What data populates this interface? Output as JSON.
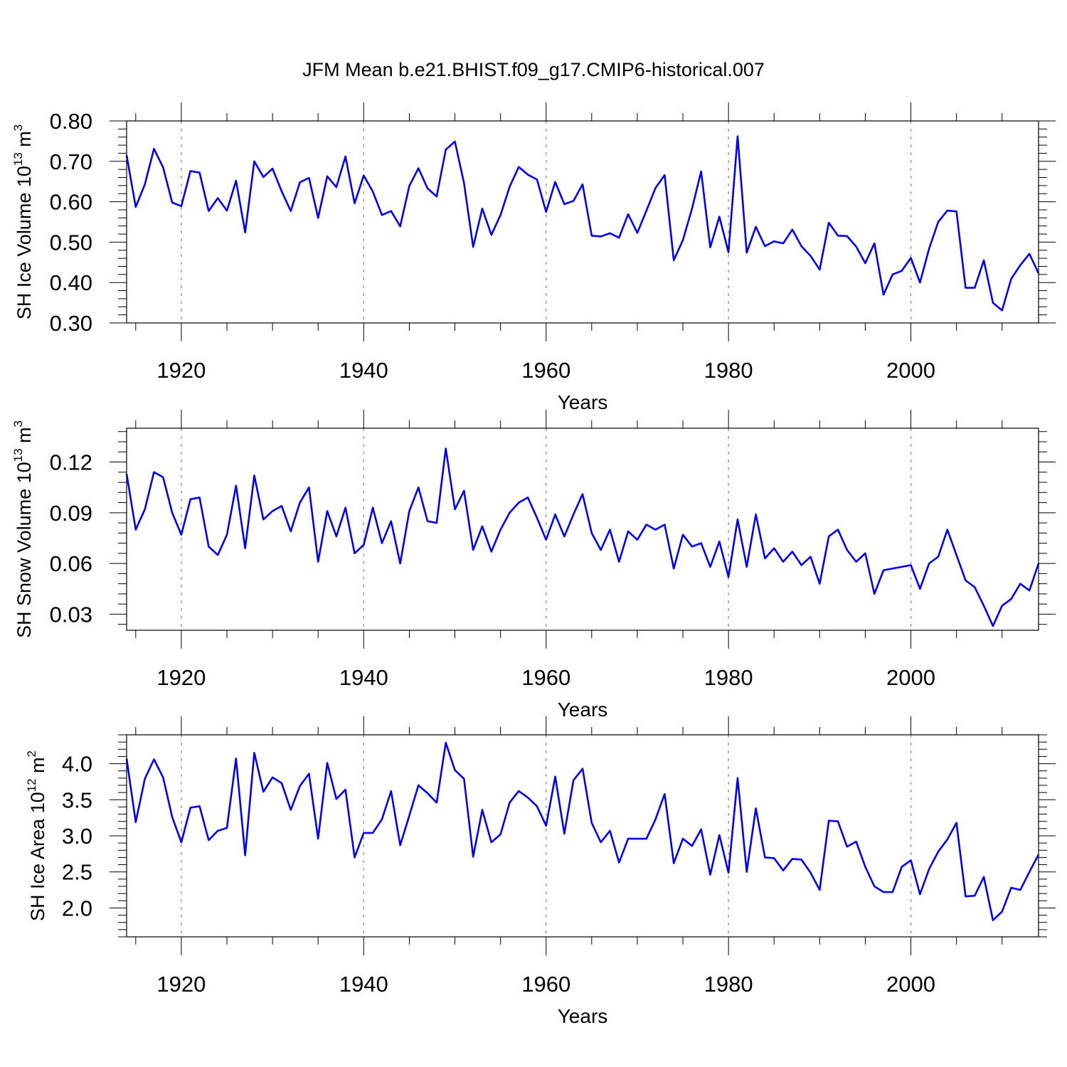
{
  "figure": {
    "title": "JFM Mean b.e21.BHIST.f09_g17.CMIP6-historical.007",
    "line_color": "#0000ff",
    "grid_color": "#9a9a9a"
  },
  "chart_data": [
    {
      "type": "line",
      "title": "JFM Mean b.e21.BHIST.f09_g17.CMIP6-historical.007",
      "xlabel": "Years",
      "ylabel": "SH Ice Volume 10",
      "ylabel_exp": "13",
      "ylabel_unit": " m",
      "ylabel_unit_exp": "3",
      "xlim": [
        1914,
        2014
      ],
      "ylim": [
        0.3,
        0.8
      ],
      "xticks": [
        1920,
        1940,
        1960,
        1980,
        2000
      ],
      "xtick_labels": [
        "1920",
        "1940",
        "1960",
        "1980",
        "2000"
      ],
      "yticks": [
        0.3,
        0.4,
        0.5,
        0.6,
        0.7,
        0.8
      ],
      "ytick_labels": [
        "0.30",
        "0.40",
        "0.50",
        "0.60",
        "0.70",
        "0.80"
      ],
      "grid": "vertical dashed at major x ticks",
      "series": [
        {
          "x_start": 1914,
          "values": [
            0.715,
            0.587,
            0.643,
            0.731,
            0.685,
            0.598,
            0.589,
            0.676,
            0.672,
            0.577,
            0.609,
            0.578,
            0.652,
            0.524,
            0.7,
            0.661,
            0.682,
            0.626,
            0.577,
            0.648,
            0.659,
            0.56,
            0.663,
            0.636,
            0.712,
            0.596,
            0.665,
            0.625,
            0.567,
            0.577,
            0.539,
            0.639,
            0.683,
            0.633,
            0.613,
            0.729,
            0.749,
            0.646,
            0.488,
            0.583,
            0.518,
            0.567,
            0.637,
            0.686,
            0.667,
            0.655,
            0.575,
            0.649,
            0.594,
            0.602,
            0.643,
            0.516,
            0.514,
            0.522,
            0.511,
            0.569,
            0.523,
            0.578,
            0.634,
            0.666,
            0.455,
            0.505,
            0.583,
            0.675,
            0.487,
            0.563,
            0.475,
            0.762,
            0.474,
            0.538,
            0.49,
            0.502,
            0.497,
            0.531,
            0.49,
            0.466,
            0.432,
            0.548,
            0.516,
            0.515,
            0.489,
            0.448,
            0.497,
            0.37,
            0.42,
            0.429,
            0.461,
            0.4,
            0.484,
            0.55,
            0.578,
            0.576,
            0.387,
            0.387,
            0.455,
            0.35,
            0.331,
            0.409,
            0.443,
            0.471,
            0.423
          ]
        }
      ]
    },
    {
      "type": "line",
      "xlabel": "Years",
      "ylabel": "SH Snow Volume 10",
      "ylabel_exp": "13",
      "ylabel_unit": " m",
      "ylabel_unit_exp": "3",
      "xlim": [
        1914,
        2014
      ],
      "ylim": [
        0.0205,
        0.14
      ],
      "xticks": [
        1920,
        1940,
        1960,
        1980,
        2000
      ],
      "xtick_labels": [
        "1920",
        "1940",
        "1960",
        "1980",
        "2000"
      ],
      "yticks": [
        0.03,
        0.06,
        0.09,
        0.12
      ],
      "ytick_labels": [
        "0.03",
        "0.06",
        "0.09",
        "0.12"
      ],
      "grid": "vertical dashed at major x ticks",
      "series": [
        {
          "x_start": 1914,
          "values": [
            0.113,
            0.08,
            0.092,
            0.114,
            0.111,
            0.09,
            0.077,
            0.098,
            0.099,
            0.07,
            0.065,
            0.077,
            0.106,
            0.069,
            0.112,
            0.086,
            0.091,
            0.094,
            0.079,
            0.096,
            0.105,
            0.061,
            0.091,
            0.076,
            0.093,
            0.066,
            0.071,
            0.093,
            0.072,
            0.085,
            0.06,
            0.091,
            0.105,
            0.085,
            0.084,
            0.128,
            0.092,
            0.103,
            0.068,
            0.082,
            0.067,
            0.08,
            0.09,
            0.096,
            0.099,
            0.087,
            0.074,
            0.089,
            0.076,
            0.089,
            0.101,
            0.078,
            0.068,
            0.08,
            0.061,
            0.079,
            0.074,
            0.083,
            0.08,
            0.083,
            0.057,
            0.077,
            0.07,
            0.072,
            0.058,
            0.073,
            0.052,
            0.086,
            0.058,
            0.089,
            0.063,
            0.069,
            0.061,
            0.067,
            0.059,
            0.064,
            0.048,
            0.076,
            0.08,
            0.068,
            0.061,
            0.066,
            0.042,
            0.056,
            0.057,
            0.058,
            0.059,
            0.045,
            0.06,
            0.064,
            0.08,
            0.065,
            0.05,
            0.046,
            0.035,
            0.023,
            0.035,
            0.039,
            0.048,
            0.044,
            0.06
          ]
        }
      ]
    },
    {
      "type": "line",
      "xlabel": "Years",
      "ylabel": "SH Ice Area 10",
      "ylabel_exp": "12",
      "ylabel_unit": " m",
      "ylabel_unit_exp": "2",
      "xlim": [
        1914,
        2014
      ],
      "ylim": [
        1.6,
        4.4
      ],
      "xticks": [
        1920,
        1940,
        1960,
        1980,
        2000
      ],
      "xtick_labels": [
        "1920",
        "1940",
        "1960",
        "1980",
        "2000"
      ],
      "yticks": [
        2.0,
        2.5,
        3.0,
        3.5,
        4.0
      ],
      "ytick_labels": [
        "2.0",
        "2.5",
        "3.0",
        "3.5",
        "4.0"
      ],
      "grid": "vertical dashed at major x ticks",
      "series": [
        {
          "x_start": 1914,
          "values": [
            4.07,
            3.19,
            3.79,
            4.06,
            3.81,
            3.26,
            2.91,
            3.39,
            3.41,
            2.94,
            3.07,
            3.11,
            4.07,
            2.73,
            4.15,
            3.61,
            3.81,
            3.73,
            3.36,
            3.69,
            3.86,
            2.96,
            4.01,
            3.51,
            3.64,
            2.7,
            3.04,
            3.04,
            3.23,
            3.62,
            2.87,
            3.28,
            3.7,
            3.59,
            3.46,
            4.29,
            3.91,
            3.79,
            2.71,
            3.36,
            2.91,
            3.02,
            3.46,
            3.62,
            3.53,
            3.41,
            3.14,
            3.82,
            3.03,
            3.77,
            3.93,
            3.18,
            2.91,
            3.07,
            2.63,
            2.96,
            2.96,
            2.96,
            3.23,
            3.58,
            2.62,
            2.96,
            2.86,
            3.09,
            2.46,
            3.01,
            2.49,
            3.8,
            2.5,
            3.38,
            2.7,
            2.69,
            2.52,
            2.68,
            2.67,
            2.49,
            2.25,
            3.21,
            3.2,
            2.85,
            2.92,
            2.57,
            2.3,
            2.22,
            2.22,
            2.57,
            2.66,
            2.19,
            2.54,
            2.78,
            2.95,
            3.18,
            2.16,
            2.17,
            2.43,
            1.83,
            1.95,
            2.28,
            2.25,
            2.5,
            2.74
          ]
        }
      ]
    }
  ]
}
